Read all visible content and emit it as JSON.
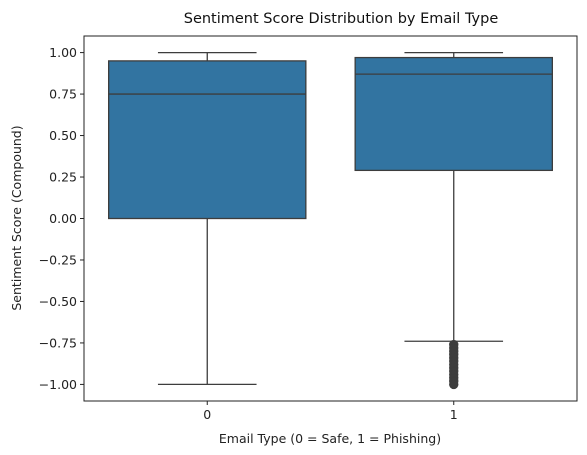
{
  "chart_data": {
    "type": "box",
    "title": "Sentiment Score Distribution by Email Type",
    "xlabel": "Email Type (0 = Safe, 1 = Phishing)",
    "ylabel": "Sentiment Score (Compound)",
    "ylim": [
      -1.1,
      1.1
    ],
    "yticks": [
      {
        "value": 1.0,
        "label": "1.00"
      },
      {
        "value": 0.75,
        "label": "0.75"
      },
      {
        "value": 0.5,
        "label": "0.50"
      },
      {
        "value": 0.25,
        "label": "0.25"
      },
      {
        "value": 0.0,
        "label": "0.00"
      },
      {
        "value": -0.25,
        "label": "−0.25"
      },
      {
        "value": -0.5,
        "label": "−0.50"
      },
      {
        "value": -0.75,
        "label": "−0.75"
      },
      {
        "value": -1.0,
        "label": "−1.00"
      }
    ],
    "categories": [
      "0",
      "1"
    ],
    "box_color": "#3274a1",
    "line_color": "#3d3d3d",
    "boxes": [
      {
        "category": "0",
        "whisker_low": -1.0,
        "q1": 0.0,
        "median": 0.75,
        "q3": 0.95,
        "whisker_high": 1.0,
        "outliers": []
      },
      {
        "category": "1",
        "whisker_low": -0.74,
        "q1": 0.29,
        "median": 0.87,
        "q3": 0.97,
        "whisker_high": 1.0,
        "outliers": [
          -0.76,
          -0.78,
          -0.8,
          -0.82,
          -0.84,
          -0.86,
          -0.88,
          -0.9,
          -0.92,
          -0.94,
          -0.96,
          -0.98,
          -1.0
        ]
      }
    ],
    "grid": false,
    "legend": "none"
  }
}
